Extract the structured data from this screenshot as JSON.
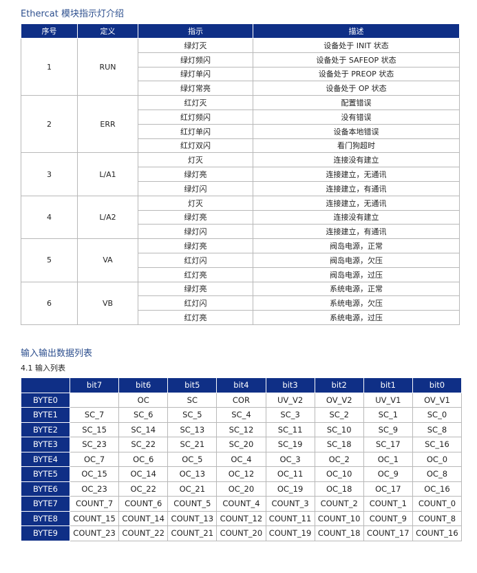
{
  "section1": {
    "title": "Ethercat 模块指示灯介绍",
    "headers": [
      "序号",
      "定义",
      "指示",
      "描述"
    ],
    "groups": [
      {
        "no": "1",
        "def": "RUN",
        "rows": [
          [
            "绿灯灭",
            "设备处于 INIT 状态"
          ],
          [
            "绿灯频闪",
            "设备处于 SAFEOP 状态"
          ],
          [
            "绿灯单闪",
            "设备处于 PREOP 状态"
          ],
          [
            "绿灯常亮",
            "设备处于 OP 状态"
          ]
        ]
      },
      {
        "no": "2",
        "def": "ERR",
        "rows": [
          [
            "红灯灭",
            "配置错误"
          ],
          [
            "红灯频闪",
            "没有错误"
          ],
          [
            "红灯单闪",
            "设备本地错误"
          ],
          [
            "红灯双闪",
            "看门狗超时"
          ]
        ]
      },
      {
        "no": "3",
        "def": "L/A1",
        "rows": [
          [
            "灯灭",
            "连接没有建立"
          ],
          [
            "绿灯亮",
            "连接建立，无通讯"
          ],
          [
            "绿灯闪",
            "连接建立，有通讯"
          ]
        ]
      },
      {
        "no": "4",
        "def": "L/A2",
        "rows": [
          [
            "灯灭",
            "连接建立，无通讯"
          ],
          [
            "绿灯亮",
            "连接没有建立"
          ],
          [
            "绿灯闪",
            "连接建立，有通讯"
          ]
        ]
      },
      {
        "no": "5",
        "def": "VA",
        "rows": [
          [
            "绿灯亮",
            "阀岛电源，正常"
          ],
          [
            "红灯闪",
            "阀岛电源，欠压"
          ],
          [
            "红灯亮",
            "阀岛电源，过压"
          ]
        ]
      },
      {
        "no": "6",
        "def": "VB",
        "rows": [
          [
            "绿灯亮",
            "系统电源，正常"
          ],
          [
            "红灯闪",
            "系统电源，欠压"
          ],
          [
            "红灯亮",
            "系统电源，过压"
          ]
        ]
      }
    ]
  },
  "section2": {
    "title": "输入输出数据列表",
    "subtitle": "4.1 输入列表",
    "headers": [
      "",
      "bit7",
      "bit6",
      "bit5",
      "bit4",
      "bit3",
      "bit2",
      "bit1",
      "bit0"
    ],
    "rows": [
      [
        "BYTE0",
        "",
        "OC",
        "SC",
        "COR",
        "UV_V2",
        "OV_V2",
        "UV_V1",
        "OV_V1"
      ],
      [
        "BYTE1",
        "SC_7",
        "SC_6",
        "SC_5",
        "SC_4",
        "SC_3",
        "SC_2",
        "SC_1",
        "SC_0"
      ],
      [
        "BYTE2",
        "SC_15",
        "SC_14",
        "SC_13",
        "SC_12",
        "SC_11",
        "SC_10",
        "SC_9",
        "SC_8"
      ],
      [
        "BYTE3",
        "SC_23",
        "SC_22",
        "SC_21",
        "SC_20",
        "SC_19",
        "SC_18",
        "SC_17",
        "SC_16"
      ],
      [
        "BYTE4",
        "OC_7",
        "OC_6",
        "OC_5",
        "OC_4",
        "OC_3",
        "OC_2",
        "OC_1",
        "OC_0"
      ],
      [
        "BYTE5",
        "OC_15",
        "OC_14",
        "OC_13",
        "OC_12",
        "OC_11",
        "OC_10",
        "OC_9",
        "OC_8"
      ],
      [
        "BYTE6",
        "OC_23",
        "OC_22",
        "OC_21",
        "OC_20",
        "OC_19",
        "OC_18",
        "OC_17",
        "OC_16"
      ],
      [
        "BYTE7",
        "COUNT_7",
        "COUNT_6",
        "COUNT_5",
        "COUNT_4",
        "COUNT_3",
        "COUNT_2",
        "COUNT_1",
        "COUNT_0"
      ],
      [
        "BYTE8",
        "COUNT_15",
        "COUNT_14",
        "COUNT_13",
        "COUNT_12",
        "COUNT_11",
        "COUNT_10",
        "COUNT_9",
        "COUNT_8"
      ],
      [
        "BYTE9",
        "COUNT_23",
        "COUNT_22",
        "COUNT_21",
        "COUNT_20",
        "COUNT_19",
        "COUNT_18",
        "COUNT_17",
        "COUNT_16"
      ]
    ]
  },
  "colors": {
    "header_bg": "#0f2f86",
    "title": "#2d4f8e"
  }
}
